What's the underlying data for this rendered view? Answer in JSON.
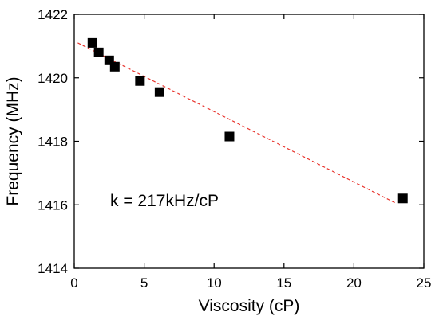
{
  "chart_data": {
    "type": "scatter",
    "title": "",
    "xlabel": "Viscosity (cP)",
    "ylabel": "Frequency (MHz)",
    "xlim": [
      0,
      25
    ],
    "ylim": [
      1414,
      1422
    ],
    "x_ticks": [
      0,
      5,
      10,
      15,
      20,
      25
    ],
    "y_ticks": [
      1414,
      1416,
      1418,
      1420,
      1422
    ],
    "grid": false,
    "legend": "none",
    "series": [
      {
        "marker": "square",
        "color": "#000000",
        "points": [
          {
            "x": 1.3,
            "y": 1421.1
          },
          {
            "x": 1.75,
            "y": 1420.8
          },
          {
            "x": 2.5,
            "y": 1420.55
          },
          {
            "x": 2.9,
            "y": 1420.35
          },
          {
            "x": 4.7,
            "y": 1419.9
          },
          {
            "x": 6.1,
            "y": 1419.55
          },
          {
            "x": 11.1,
            "y": 1418.15
          },
          {
            "x": 23.5,
            "y": 1416.2
          }
        ]
      }
    ],
    "fit_line": {
      "style": "dashed",
      "color": "#e8332c",
      "from": {
        "x": 0.25,
        "y": 1421.1
      },
      "to": {
        "x": 23.0,
        "y": 1416.05
      }
    },
    "annotation": "k = 217kHz/cP"
  }
}
